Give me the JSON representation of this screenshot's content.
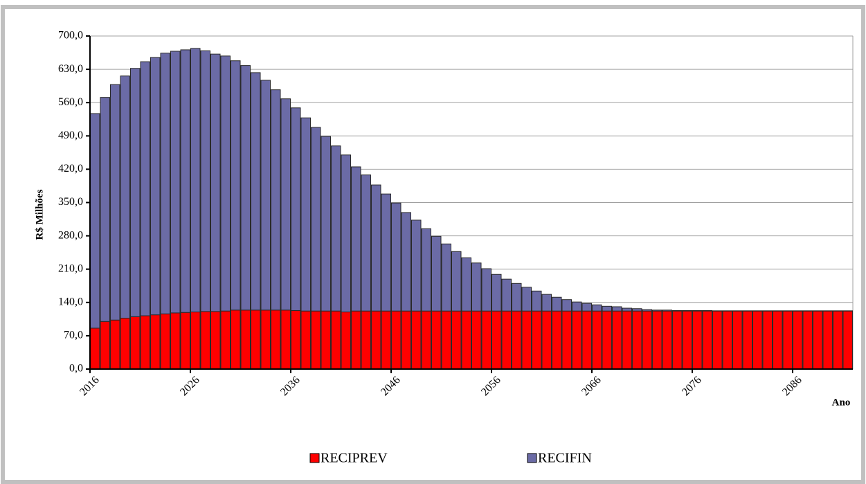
{
  "chart_data": {
    "type": "stacked_bar",
    "y_label": "R$ Milhões",
    "x_label": "Ano",
    "categories": [
      "2016",
      null,
      null,
      null,
      null,
      null,
      null,
      null,
      null,
      null,
      "2026",
      null,
      null,
      null,
      null,
      null,
      null,
      null,
      null,
      null,
      "2036",
      null,
      null,
      null,
      null,
      null,
      null,
      null,
      null,
      null,
      "2046",
      null,
      null,
      null,
      null,
      null,
      null,
      null,
      null,
      null,
      "2056",
      null,
      null,
      null,
      null,
      null,
      null,
      null,
      null,
      null,
      "2066",
      null,
      null,
      null,
      null,
      null,
      null,
      null,
      null,
      null,
      "2076",
      null,
      null,
      null,
      null,
      null,
      null,
      null,
      null,
      null,
      "2086",
      null,
      null,
      null,
      null,
      null
    ],
    "series": [
      {
        "name": "RECIPREV",
        "color": "#ff0000",
        "values": [
          86,
          100,
          103,
          107,
          110,
          112,
          114,
          116,
          118,
          119,
          120,
          121,
          121,
          122,
          124,
          124,
          124,
          124,
          124,
          124,
          123,
          122,
          122,
          122,
          122,
          120,
          122,
          122,
          122,
          122,
          122,
          122,
          122,
          122,
          122,
          122,
          122,
          122,
          122,
          122,
          122,
          122,
          122,
          122,
          122,
          122,
          122,
          122,
          122,
          122,
          122,
          122,
          122,
          122,
          122,
          122,
          122,
          122,
          122,
          122,
          122,
          122,
          122,
          122,
          122,
          122,
          122,
          122,
          122,
          122,
          122,
          122,
          122,
          122,
          122,
          122
        ]
      },
      {
        "name": "RECIFIN",
        "color": "#6b6ba6",
        "values": [
          451,
          471,
          495,
          509,
          522,
          534,
          541,
          548,
          550,
          552,
          554,
          548,
          541,
          536,
          524,
          514,
          499,
          483,
          463,
          444,
          426,
          406,
          386,
          367,
          347,
          330,
          303,
          286,
          265,
          246,
          227,
          207,
          191,
          173,
          157,
          141,
          125,
          112,
          101,
          89,
          77,
          67,
          58,
          50,
          42,
          35,
          29,
          24,
          19,
          16,
          13,
          10,
          9,
          6,
          5,
          3,
          2,
          2,
          1,
          1,
          1,
          1,
          0.5,
          0.5,
          0.5,
          0.5,
          0.5,
          0.5,
          0.5,
          0.5,
          0.5,
          0.5,
          0.5,
          0.5,
          0.5,
          0.5
        ]
      }
    ],
    "ylim": [
      0,
      700
    ],
    "yticks": [
      {
        "value": 0,
        "label": "0,0"
      },
      {
        "value": 70,
        "label": "70,0"
      },
      {
        "value": 140,
        "label": "140,0"
      },
      {
        "value": 210,
        "label": "210,0"
      },
      {
        "value": 280,
        "label": "280,0"
      },
      {
        "value": 350,
        "label": "350,0"
      },
      {
        "value": 420,
        "label": "420,0"
      },
      {
        "value": 490,
        "label": "490,0"
      },
      {
        "value": 560,
        "label": "560,0"
      },
      {
        "value": 630,
        "label": "630,0"
      },
      {
        "value": 700,
        "label": "700,0"
      }
    ],
    "grid": true,
    "legend": "bottom"
  }
}
